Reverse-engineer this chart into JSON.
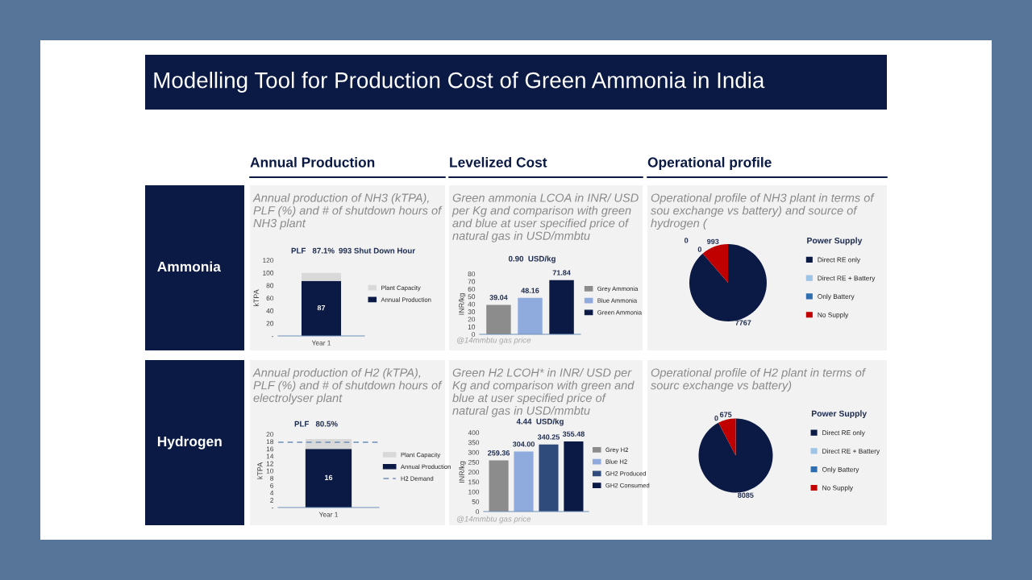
{
  "chart_data": [
    {
      "type": "other",
      "title": "Modelling Tool for Production Cost of Green Ammonia in India"
    },
    {
      "type": "other",
      "title": "Ammonia"
    },
    {
      "type": "bar",
      "title": "Annual Production",
      "subtitle": "Annual production of NH3 (kTPA), PLF (%) and # of shutdown hours of NH3 plant",
      "ylabel": "kTPA",
      "categories": [
        "Year 1"
      ],
      "stacked": true,
      "series": [
        {
          "name": "Annual Production",
          "color": "#0b1a45",
          "values": [
            87
          ],
          "value_labels": [
            "87"
          ]
        },
        {
          "name": "Plant Capacity",
          "color": "#d9d9d9",
          "values": [
            13
          ]
        }
      ],
      "ylim": [
        0,
        120
      ],
      "yticks": [
        {
          "value": 0,
          "label": "-"
        },
        20,
        40,
        60,
        80,
        100,
        120
      ],
      "legend": "right",
      "annotations": [
        "PLF   87.1%",
        "993 Shut Down Hour"
      ]
    },
    {
      "type": "bar",
      "title": "Levelized Cost",
      "subtitle": "Green ammonia LCOA in INR/ USD per Kg and comparison with green and blue at user specified price of natural gas in USD/mmbtu",
      "ylabel": "INR/kg",
      "categories": [
        null,
        null,
        null
      ],
      "series": [
        {
          "name": "Grey Ammonia",
          "color": "#8c8c8c",
          "values": [
            39.04,
            null,
            null
          ]
        },
        {
          "name": "Blue Ammonia",
          "color": "#8faadc",
          "values": [
            null,
            48.16,
            null
          ]
        },
        {
          "name": "Green Ammonia",
          "color": "#0b1a45",
          "values": [
            null,
            null,
            71.84
          ]
        }
      ],
      "data_labels": true,
      "ylim": [
        0,
        80
      ],
      "yticks": [
        0,
        10,
        20,
        30,
        40,
        50,
        60,
        70,
        80
      ],
      "legend": "right",
      "annotations": [
        "0.90  USD/kg",
        "@14mmbtu gas price"
      ]
    },
    {
      "type": "pie",
      "title": "Operational profile",
      "subtitle": "Operational profile of NH3 plant in terms of sou exchange vs battery) and source of hydrogen (",
      "legend_title": "Power Supply",
      "categories": [
        "Direct RE only",
        "Direct RE + Battery",
        "Only Battery",
        "No Supply"
      ],
      "values": [
        7767,
        0,
        0,
        993
      ],
      "colors": [
        "#0b1a45",
        "#9dc3e6",
        "#2e6eb0",
        "#c00000"
      ],
      "value_labels": [
        "7767",
        "0",
        "0",
        "993"
      ],
      "data_labels": true,
      "legend": "right"
    },
    {
      "type": "other",
      "title": "Hydrogen"
    },
    {
      "type": "bar",
      "subtitle": "Annual production of H2 (kTPA), PLF (%) and # of shutdown hours of electrolyser plant",
      "ylabel": "kTPA",
      "categories": [
        "Year 1"
      ],
      "stacked": true,
      "series": [
        {
          "name": "Annual Production",
          "color": "#0b1a45",
          "values": [
            16
          ],
          "value_labels": [
            "16"
          ]
        },
        {
          "name": "Plant Capacity",
          "color": "#d9d9d9",
          "values": [
            2.7
          ]
        }
      ],
      "ref_lines": [
        {
          "axis": "y",
          "value": 17.8,
          "label": "H2 Demand",
          "color": "#6f8fb8",
          "line_style": "dashed"
        }
      ],
      "ylim": [
        0,
        20
      ],
      "yticks": [
        {
          "value": 0,
          "label": "-"
        },
        2,
        4,
        6,
        8,
        10,
        12,
        14,
        16,
        18,
        20
      ],
      "legend": "right",
      "annotations": [
        "PLF   80.5%"
      ]
    },
    {
      "type": "bar",
      "subtitle": "Green H2 LCOH* in INR/ USD per Kg and comparison with green and blue at user specified price of natural gas in USD/mmbtu",
      "ylabel": "INR/kg",
      "categories": [
        null,
        null,
        null,
        null
      ],
      "series": [
        {
          "name": "Grey H2",
          "color": "#8c8c8c",
          "values": [
            259.36,
            null,
            null,
            null
          ],
          "value_labels": [
            "259.36",
            null,
            null,
            null
          ]
        },
        {
          "name": "Blue H2",
          "color": "#8faadc",
          "values": [
            null,
            304.0,
            null,
            null
          ],
          "value_labels": [
            null,
            "304.00",
            null,
            null
          ]
        },
        {
          "name": "GH2 Produced",
          "color": "#2f4b7c",
          "values": [
            null,
            null,
            340.25,
            null
          ],
          "value_labels": [
            null,
            null,
            "340.25",
            null
          ]
        },
        {
          "name": "GH2 Consumed",
          "color": "#0b1a45",
          "values": [
            null,
            null,
            null,
            355.48
          ],
          "value_labels": [
            null,
            null,
            null,
            "355.48"
          ]
        }
      ],
      "ylim": [
        0,
        400
      ],
      "yticks": [
        0,
        50,
        100,
        150,
        200,
        250,
        300,
        350,
        400
      ],
      "legend": "right",
      "annotations": [
        "4.44  USD/kg",
        "@14mmbtu gas price"
      ]
    },
    {
      "type": "pie",
      "subtitle": "Operational profile of H2 plant in terms of sourc exchange vs battery)",
      "legend_title": "Power Supply",
      "categories": [
        "Direct RE only",
        "Direct RE + Battery",
        "Only Battery",
        "No Supply"
      ],
      "values": [
        8085,
        0,
        0,
        675
      ],
      "colors": [
        "#0b1a45",
        "#9dc3e6",
        "#2e6eb0",
        "#c00000"
      ],
      "value_labels": [
        "8085",
        "0",
        null,
        "675"
      ],
      "legend": "right"
    }
  ]
}
